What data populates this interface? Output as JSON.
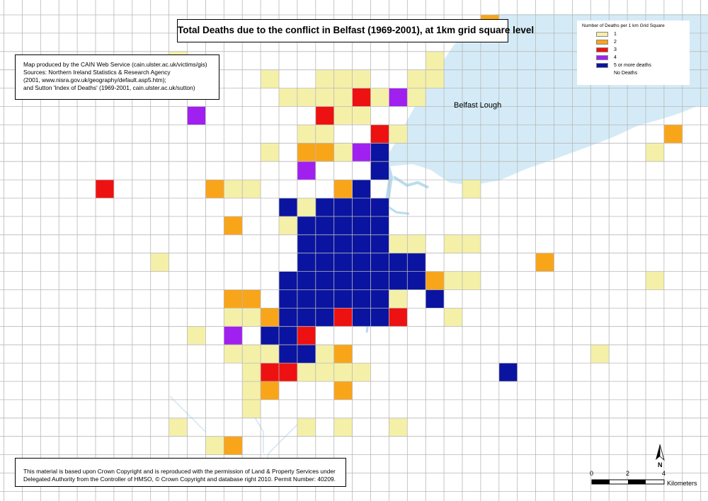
{
  "title": "Total Deaths due to the conflict in Belfast (1969-2001), at 1km grid square level",
  "credits": [
    "Map produced by the CAIN Web Service (cain.ulster.ac.uk/victims/gis)",
    "Sources: Northern Ireland Statistics & Research Agency",
    "(2001, www.nisra.gov.uk/geography/default.asp5.htm);",
    "and Sutton 'Index of Deaths' (1969-2001, cain.ulster.ac.uk/sutton)"
  ],
  "copyright": [
    "This material is based upon Crown Copyright and is reproduced with the permission of Land & Property Services under",
    "Delegated Authority from the Controller of HMSO, © Crown Copyright and database right 2010. Permit Number: 40209."
  ],
  "legend": {
    "title": "Number of Deaths per 1 km Grid Square",
    "items": [
      {
        "label": "1",
        "color": "#f5f0a8"
      },
      {
        "label": "2",
        "color": "#f9a51a"
      },
      {
        "label": "3",
        "color": "#ee1111"
      },
      {
        "label": "4",
        "color": "#a020f0"
      },
      {
        "label": "5 or more deaths",
        "color": "#0a14a0"
      },
      {
        "label": "No Deaths",
        "color": "#ffffff"
      }
    ]
  },
  "place_labels": {
    "lough": "Belfast Lough"
  },
  "north_arrow": "N",
  "scale_bar": {
    "ticks": [
      "0",
      "2",
      "4"
    ],
    "unit": "Kilometers"
  },
  "colors": {
    "water": "#d4ebf7",
    "grid_line": "#b8b8b8"
  },
  "chart_data": {
    "type": "heatmap",
    "value_key": {
      "1": "1",
      "2": "2",
      "3": "3",
      "4": "4",
      "5": "5 or more deaths"
    },
    "squares": [
      [
        26,
        0,
        2
      ],
      [
        9,
        2,
        1
      ],
      [
        23,
        2,
        1
      ],
      [
        14,
        3,
        1
      ],
      [
        17,
        3,
        1
      ],
      [
        18,
        3,
        1
      ],
      [
        19,
        3,
        1
      ],
      [
        22,
        3,
        1
      ],
      [
        23,
        3,
        1
      ],
      [
        15,
        4,
        1
      ],
      [
        16,
        4,
        1
      ],
      [
        17,
        4,
        1
      ],
      [
        18,
        4,
        1
      ],
      [
        19,
        4,
        3
      ],
      [
        20,
        4,
        1
      ],
      [
        21,
        4,
        4
      ],
      [
        22,
        4,
        1
      ],
      [
        10,
        5,
        4
      ],
      [
        17,
        5,
        3
      ],
      [
        18,
        5,
        1
      ],
      [
        19,
        5,
        1
      ],
      [
        16,
        6,
        1
      ],
      [
        17,
        6,
        1
      ],
      [
        20,
        6,
        3
      ],
      [
        21,
        6,
        1
      ],
      [
        36,
        6,
        2
      ],
      [
        14,
        7,
        1
      ],
      [
        16,
        7,
        2
      ],
      [
        17,
        7,
        2
      ],
      [
        18,
        7,
        1
      ],
      [
        19,
        7,
        4
      ],
      [
        20,
        7,
        5
      ],
      [
        35,
        7,
        1
      ],
      [
        16,
        8,
        4
      ],
      [
        20,
        8,
        5
      ],
      [
        5,
        9,
        3
      ],
      [
        11,
        9,
        2
      ],
      [
        12,
        9,
        1
      ],
      [
        13,
        9,
        1
      ],
      [
        18,
        9,
        2
      ],
      [
        19,
        9,
        5
      ],
      [
        25,
        9,
        1
      ],
      [
        15,
        10,
        5
      ],
      [
        16,
        10,
        1
      ],
      [
        17,
        10,
        5
      ],
      [
        18,
        10,
        5
      ],
      [
        19,
        10,
        5
      ],
      [
        20,
        10,
        5
      ],
      [
        12,
        11,
        2
      ],
      [
        15,
        11,
        1
      ],
      [
        16,
        11,
        5
      ],
      [
        17,
        11,
        5
      ],
      [
        18,
        11,
        5
      ],
      [
        19,
        11,
        5
      ],
      [
        20,
        11,
        5
      ],
      [
        16,
        12,
        5
      ],
      [
        17,
        12,
        5
      ],
      [
        18,
        12,
        5
      ],
      [
        19,
        12,
        5
      ],
      [
        20,
        12,
        5
      ],
      [
        21,
        12,
        1
      ],
      [
        22,
        12,
        1
      ],
      [
        24,
        12,
        1
      ],
      [
        25,
        12,
        1
      ],
      [
        8,
        13,
        1
      ],
      [
        16,
        13,
        5
      ],
      [
        17,
        13,
        5
      ],
      [
        18,
        13,
        5
      ],
      [
        19,
        13,
        5
      ],
      [
        20,
        13,
        5
      ],
      [
        21,
        13,
        5
      ],
      [
        22,
        13,
        5
      ],
      [
        29,
        13,
        2
      ],
      [
        15,
        14,
        5
      ],
      [
        16,
        14,
        5
      ],
      [
        17,
        14,
        5
      ],
      [
        18,
        14,
        5
      ],
      [
        19,
        14,
        5
      ],
      [
        20,
        14,
        5
      ],
      [
        21,
        14,
        5
      ],
      [
        22,
        14,
        5
      ],
      [
        23,
        14,
        2
      ],
      [
        24,
        14,
        1
      ],
      [
        25,
        14,
        1
      ],
      [
        35,
        14,
        1
      ],
      [
        12,
        15,
        2
      ],
      [
        13,
        15,
        2
      ],
      [
        15,
        15,
        5
      ],
      [
        16,
        15,
        5
      ],
      [
        17,
        15,
        5
      ],
      [
        18,
        15,
        5
      ],
      [
        19,
        15,
        5
      ],
      [
        20,
        15,
        5
      ],
      [
        21,
        15,
        1
      ],
      [
        23,
        15,
        5
      ],
      [
        12,
        16,
        1
      ],
      [
        13,
        16,
        1
      ],
      [
        14,
        16,
        2
      ],
      [
        15,
        16,
        5
      ],
      [
        16,
        16,
        5
      ],
      [
        17,
        16,
        5
      ],
      [
        18,
        16,
        3
      ],
      [
        19,
        16,
        5
      ],
      [
        20,
        16,
        5
      ],
      [
        21,
        16,
        3
      ],
      [
        24,
        16,
        1
      ],
      [
        10,
        17,
        1
      ],
      [
        12,
        17,
        4
      ],
      [
        14,
        17,
        5
      ],
      [
        15,
        17,
        5
      ],
      [
        16,
        17,
        3
      ],
      [
        12,
        18,
        1
      ],
      [
        13,
        18,
        1
      ],
      [
        14,
        18,
        1
      ],
      [
        15,
        18,
        5
      ],
      [
        16,
        18,
        5
      ],
      [
        17,
        18,
        1
      ],
      [
        18,
        18,
        2
      ],
      [
        32,
        18,
        1
      ],
      [
        13,
        19,
        1
      ],
      [
        14,
        19,
        3
      ],
      [
        15,
        19,
        3
      ],
      [
        16,
        19,
        1
      ],
      [
        17,
        19,
        1
      ],
      [
        18,
        19,
        1
      ],
      [
        19,
        19,
        1
      ],
      [
        27,
        19,
        5
      ],
      [
        13,
        20,
        1
      ],
      [
        14,
        20,
        2
      ],
      [
        18,
        20,
        2
      ],
      [
        13,
        21,
        1
      ],
      [
        9,
        22,
        1
      ],
      [
        16,
        22,
        1
      ],
      [
        18,
        22,
        1
      ],
      [
        21,
        22,
        1
      ],
      [
        11,
        23,
        1
      ],
      [
        12,
        23,
        2
      ]
    ]
  }
}
